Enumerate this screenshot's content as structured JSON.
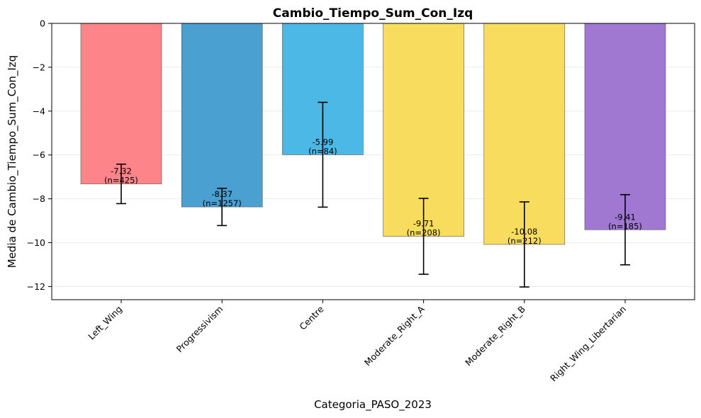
{
  "chart_data": {
    "type": "bar",
    "title": "Cambio_Tiempo_Sum_Con_Izq",
    "xlabel": "Categoria_PASO_2023",
    "ylabel": "Media de Cambio_Tiempo_Sum_Con_Izq",
    "ylim": [
      -12.6,
      0
    ],
    "yticks": [
      0,
      -2,
      -4,
      -6,
      -8,
      -10,
      -12
    ],
    "grid": "y",
    "categories": [
      "Left_Wing",
      "Progressivism",
      "Centre",
      "Moderate_Right_A",
      "Moderate_Right_B",
      "Right_Wing_Libertarian"
    ],
    "values": [
      -7.32,
      -8.37,
      -5.99,
      -9.71,
      -10.08,
      -9.41
    ],
    "error_low": [
      -8.22,
      -9.22,
      -8.38,
      -11.44,
      -12.02,
      -11.01
    ],
    "error_high": [
      -6.42,
      -7.52,
      -3.6,
      -7.98,
      -8.14,
      -7.81
    ],
    "value_labels": [
      "-7.32",
      "-8.37",
      "-5.99",
      "-9.71",
      "-10.08",
      "-9.41"
    ],
    "n_labels": [
      "(n=425)",
      "(n=1257)",
      "(n=84)",
      "(n=208)",
      "(n=212)",
      "(n=185)"
    ],
    "colors": [
      "#fd858a",
      "#4aa0d1",
      "#4bb8e6",
      "#f8dc5e",
      "#f8dc5e",
      "#a077d1"
    ]
  }
}
